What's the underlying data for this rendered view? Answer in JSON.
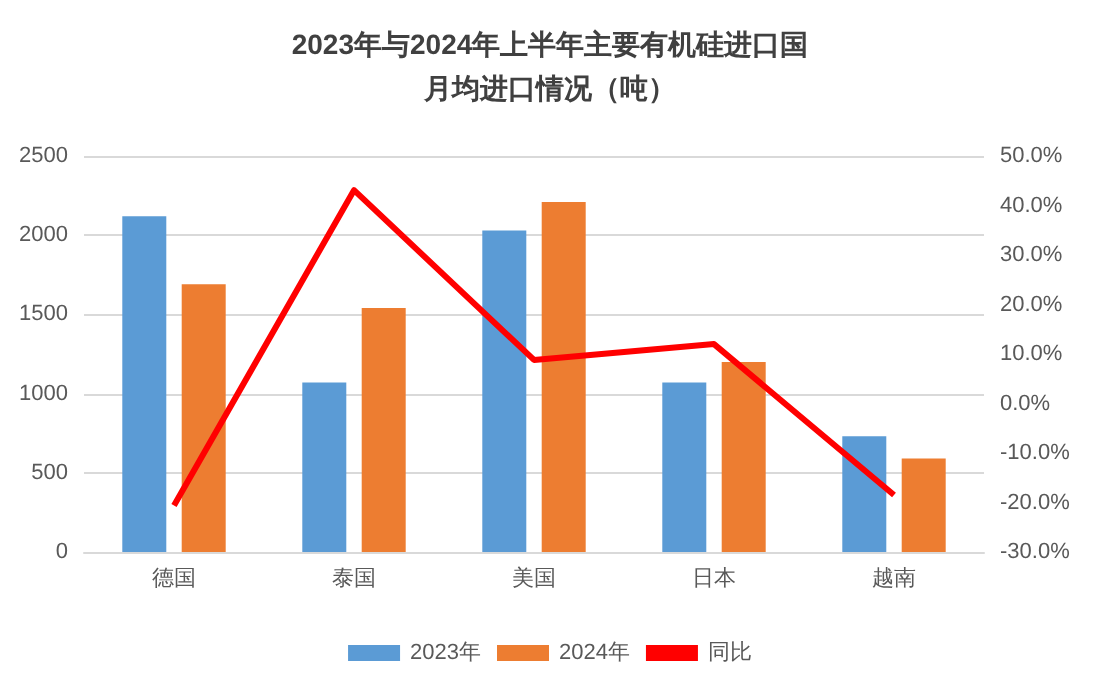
{
  "chart_data": {
    "type": "bar",
    "title": "2023年与2024年上半年主要有机硅进口国月均进口情况（吨）",
    "categories": [
      "德国",
      "泰国",
      "美国",
      "日本",
      "越南"
    ],
    "series": [
      {
        "name": "2023年",
        "color": "#5b9bd5",
        "values": [
          2120,
          1070,
          2030,
          1070,
          730
        ]
      },
      {
        "name": "2024年",
        "color": "#ed7d31",
        "values": [
          1690,
          1540,
          2210,
          1200,
          590
        ]
      },
      {
        "name": "同比",
        "type": "line",
        "axis": "y2",
        "color": "#ff0000",
        "values": [
          -20.6,
          43.1,
          8.8,
          12,
          -18.5
        ]
      }
    ],
    "ylim": [
      0,
      2500
    ],
    "yticks": [
      0,
      500,
      1000,
      1500,
      2000,
      2500
    ],
    "y2lim": [
      -30,
      50
    ],
    "y2ticks": [
      {
        "value": -30,
        "label": "-30.0%"
      },
      {
        "value": -20,
        "label": "-20.0%"
      },
      {
        "value": -10,
        "label": "-10.0%"
      },
      {
        "value": 0,
        "label": "0.0%"
      },
      {
        "value": 10,
        "label": "10.0%"
      },
      {
        "value": 20,
        "label": "20.0%"
      },
      {
        "value": 30,
        "label": "30.0%"
      },
      {
        "value": 40,
        "label": "40.0%"
      },
      {
        "value": 50,
        "label": "50.0%"
      }
    ],
    "grid": "y",
    "legend": "bottom",
    "marker": "none"
  }
}
